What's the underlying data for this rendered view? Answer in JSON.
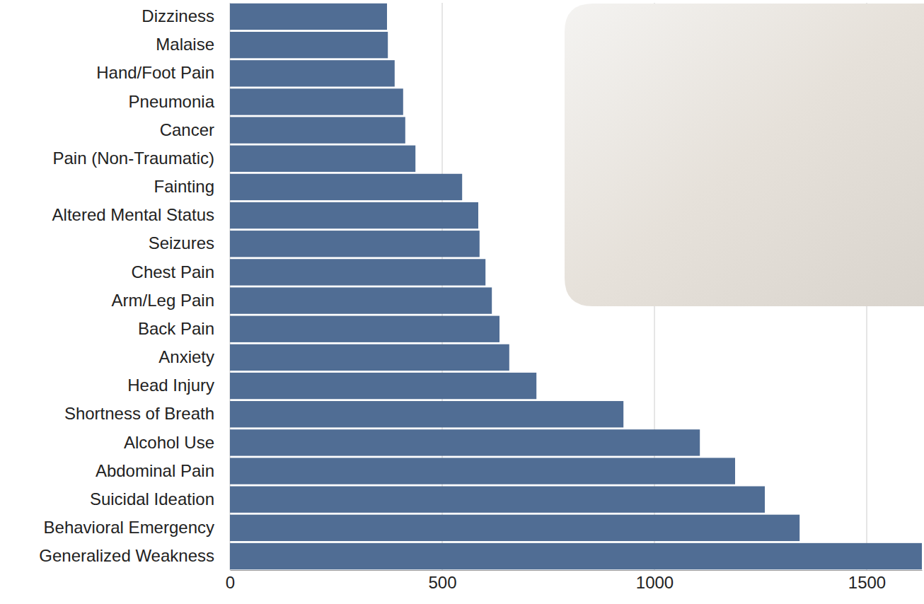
{
  "chart_data": {
    "type": "bar",
    "orientation": "horizontal",
    "categories": [
      "Dizziness",
      "Malaise",
      "Hand/Foot Pain",
      "Pneumonia",
      "Cancer",
      "Pain (Non-Traumatic)",
      "Fainting",
      "Altered Mental Status",
      "Seizures",
      "Chest Pain",
      "Arm/Leg Pain",
      "Back Pain",
      "Anxiety",
      "Head Injury",
      "Shortness of Breath",
      "Alcohol Use",
      "Abdominal Pain",
      "Suicidal Ideation",
      "Behavioral Emergency",
      "Generalized Weakness"
    ],
    "values": [
      370,
      372,
      388,
      408,
      413,
      437,
      547,
      585,
      588,
      602,
      617,
      635,
      658,
      722,
      927,
      1107,
      1190,
      1260,
      1342,
      1630
    ],
    "color": "#506d94",
    "xlim": [
      0,
      1630
    ],
    "xticks": [
      0,
      500,
      1000,
      1500
    ],
    "grid": true
  }
}
